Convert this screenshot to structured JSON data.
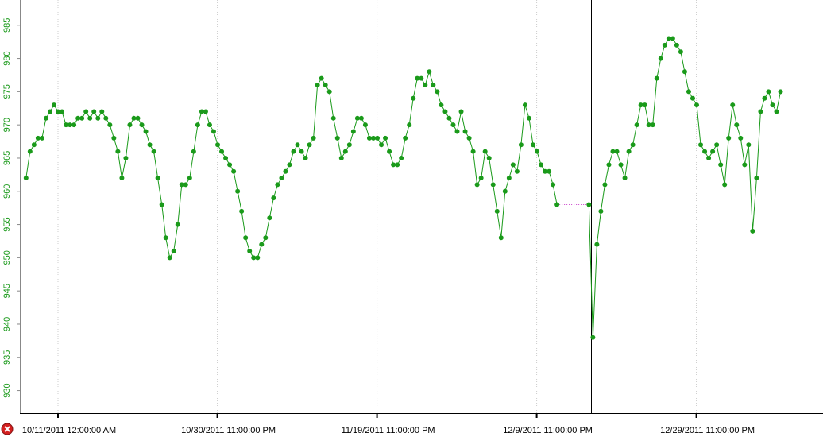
{
  "chart_data": {
    "type": "line-scatter",
    "color": "#1a9a1a",
    "gap_color": "#cc44cc",
    "xlim": [
      "2011-10-06T05:22",
      "2012-01-14T19:40"
    ],
    "ylim": [
      926.6,
      988.8
    ],
    "yticks": [
      930,
      935,
      940,
      945,
      950,
      955,
      960,
      965,
      970,
      975,
      980,
      985
    ],
    "xticks": [
      {
        "value": "2011-10-11T00:00",
        "label": "10/11/2011 12:00:00 AM"
      },
      {
        "value": "2011-10-30T23:00",
        "label": "10/30/2011 11:00:00 PM"
      },
      {
        "value": "2011-11-19T23:00",
        "label": "11/19/2011 11:00:00 PM"
      },
      {
        "value": "2011-12-09T23:00",
        "label": "12/9/2011 11:00:00 PM"
      },
      {
        "value": "2011-12-29T23:00",
        "label": "12/29/2011 11:00:00 PM"
      }
    ],
    "x": [
      "2011-10-07T00:00",
      "2011-10-07T12:00",
      "2011-10-08T00:00",
      "2011-10-08T12:00",
      "2011-10-09T00:00",
      "2011-10-09T12:00",
      "2011-10-10T00:00",
      "2011-10-10T12:00",
      "2011-10-11T00:00",
      "2011-10-11T12:00",
      "2011-10-12T00:00",
      "2011-10-12T12:00",
      "2011-10-13T00:00",
      "2011-10-13T12:00",
      "2011-10-14T00:00",
      "2011-10-14T12:00",
      "2011-10-15T00:00",
      "2011-10-15T12:00",
      "2011-10-16T00:00",
      "2011-10-16T12:00",
      "2011-10-17T00:00",
      "2011-10-17T12:00",
      "2011-10-18T00:00",
      "2011-10-18T12:00",
      "2011-10-19T00:00",
      "2011-10-19T12:00",
      "2011-10-20T00:00",
      "2011-10-20T12:00",
      "2011-10-21T00:00",
      "2011-10-21T12:00",
      "2011-10-22T00:00",
      "2011-10-22T12:00",
      "2011-10-23T00:00",
      "2011-10-23T12:00",
      "2011-10-24T00:00",
      "2011-10-24T12:00",
      "2011-10-25T00:00",
      "2011-10-25T12:00",
      "2011-10-26T00:00",
      "2011-10-26T12:00",
      "2011-10-27T00:00",
      "2011-10-27T12:00",
      "2011-10-28T00:00",
      "2011-10-28T12:00",
      "2011-10-29T00:00",
      "2011-10-29T12:00",
      "2011-10-30T00:00",
      "2011-10-30T12:00",
      "2011-10-31T00:00",
      "2011-10-31T12:00",
      "2011-11-01T00:00",
      "2011-11-01T12:00",
      "2011-11-02T00:00",
      "2011-11-02T12:00",
      "2011-11-03T00:00",
      "2011-11-03T12:00",
      "2011-11-04T00:00",
      "2011-11-04T12:00",
      "2011-11-05T00:00",
      "2011-11-05T12:00",
      "2011-11-06T00:00",
      "2011-11-06T12:00",
      "2011-11-07T00:00",
      "2011-11-07T12:00",
      "2011-11-08T00:00",
      "2011-11-08T12:00",
      "2011-11-09T00:00",
      "2011-11-09T12:00",
      "2011-11-10T00:00",
      "2011-11-10T12:00",
      "2011-11-11T00:00",
      "2011-11-11T12:00",
      "2011-11-12T00:00",
      "2011-11-12T12:00",
      "2011-11-13T00:00",
      "2011-11-13T12:00",
      "2011-11-14T00:00",
      "2011-11-14T12:00",
      "2011-11-15T00:00",
      "2011-11-15T12:00",
      "2011-11-16T00:00",
      "2011-11-16T12:00",
      "2011-11-17T00:00",
      "2011-11-17T12:00",
      "2011-11-18T00:00",
      "2011-11-18T12:00",
      "2011-11-19T00:00",
      "2011-11-19T12:00",
      "2011-11-20T00:00",
      "2011-11-20T12:00",
      "2011-11-21T00:00",
      "2011-11-21T12:00",
      "2011-11-22T00:00",
      "2011-11-22T12:00",
      "2011-11-23T00:00",
      "2011-11-23T12:00",
      "2011-11-24T00:00",
      "2011-11-24T12:00",
      "2011-11-25T00:00",
      "2011-11-25T12:00",
      "2011-11-26T00:00",
      "2011-11-26T12:00",
      "2011-11-27T00:00",
      "2011-11-27T12:00",
      "2011-11-28T00:00",
      "2011-11-28T12:00",
      "2011-11-29T00:00",
      "2011-11-29T12:00",
      "2011-11-30T00:00",
      "2011-11-30T12:00",
      "2011-12-01T00:00",
      "2011-12-01T12:00",
      "2011-12-02T00:00",
      "2011-12-02T12:00",
      "2011-12-03T00:00",
      "2011-12-03T12:00",
      "2011-12-04T00:00",
      "2011-12-04T12:00",
      "2011-12-05T00:00",
      "2011-12-05T12:00",
      "2011-12-06T00:00",
      "2011-12-06T12:00",
      "2011-12-07T00:00",
      "2011-12-07T12:00",
      "2011-12-08T00:00",
      "2011-12-08T12:00",
      "2011-12-09T00:00",
      "2011-12-09T12:00",
      "2011-12-10T00:00",
      "2011-12-10T12:00",
      "2011-12-11T00:00",
      "2011-12-11T12:00",
      "2011-12-12T00:00",
      "2011-12-12T12:00",
      "2011-12-13T00:00",
      "2011-12-13T12:00",
      "2011-12-14T00:00",
      "2011-12-14T12:00",
      "2011-12-15T00:00",
      "2011-12-15T12:00",
      "2011-12-16T00:00",
      "2011-12-16T12:00",
      "2011-12-17T00:00",
      "2011-12-17T12:00",
      "2011-12-18T00:00",
      "2011-12-18T12:00",
      "2011-12-19T00:00",
      "2011-12-19T12:00",
      "2011-12-20T00:00",
      "2011-12-20T12:00",
      "2011-12-21T00:00",
      "2011-12-21T12:00",
      "2011-12-22T00:00",
      "2011-12-22T12:00",
      "2011-12-23T00:00",
      "2011-12-23T12:00",
      "2011-12-24T00:00",
      "2011-12-24T12:00",
      "2011-12-25T00:00",
      "2011-12-25T12:00",
      "2011-12-26T00:00",
      "2011-12-26T12:00",
      "2011-12-27T00:00",
      "2011-12-27T12:00",
      "2011-12-28T00:00",
      "2011-12-28T12:00",
      "2011-12-29T00:00",
      "2011-12-29T12:00",
      "2011-12-30T00:00",
      "2011-12-30T12:00",
      "2011-12-31T00:00",
      "2011-12-31T12:00",
      "2012-01-01T00:00",
      "2012-01-01T12:00",
      "2012-01-02T00:00",
      "2012-01-02T12:00",
      "2012-01-03T00:00",
      "2012-01-03T12:00",
      "2012-01-04T00:00",
      "2012-01-04T12:00",
      "2012-01-05T00:00",
      "2012-01-05T12:00",
      "2012-01-06T00:00",
      "2012-01-06T12:00",
      "2012-01-07T00:00",
      "2012-01-07T12:00",
      "2012-01-08T00:00",
      "2012-01-08T12:00",
      "2012-01-09T00:00",
      "2012-01-09T12:00"
    ],
    "values": [
      962,
      966,
      967,
      968,
      968,
      971,
      972,
      973,
      972,
      972,
      970,
      970,
      970,
      971,
      971,
      972,
      971,
      972,
      971,
      972,
      971,
      970,
      968,
      966,
      962,
      965,
      970,
      971,
      971,
      970,
      969,
      967,
      966,
      962,
      958,
      953,
      950,
      951,
      955,
      961,
      961,
      962,
      966,
      970,
      972,
      972,
      970,
      969,
      967,
      966,
      965,
      964,
      963,
      960,
      957,
      953,
      951,
      950,
      950,
      952,
      953,
      956,
      959,
      961,
      962,
      963,
      964,
      966,
      967,
      966,
      965,
      967,
      968,
      976,
      977,
      976,
      975,
      971,
      968,
      965,
      966,
      967,
      969,
      971,
      971,
      970,
      968,
      968,
      968,
      967,
      968,
      966,
      964,
      964,
      965,
      968,
      970,
      974,
      977,
      977,
      976,
      978,
      976,
      975,
      973,
      972,
      971,
      970,
      969,
      972,
      969,
      968,
      966,
      961,
      962,
      966,
      965,
      961,
      957,
      953,
      960,
      962,
      964,
      963,
      967,
      973,
      971,
      967,
      966,
      964,
      963,
      963,
      961,
      958,
      null,
      null,
      null,
      null,
      null,
      null,
      null,
      958,
      938,
      952,
      957,
      961,
      964,
      966,
      966,
      964,
      962,
      966,
      967,
      970,
      973,
      973,
      970,
      970,
      977,
      980,
      982,
      983,
      983,
      982,
      981,
      978,
      975,
      974,
      973,
      967,
      966,
      965,
      966,
      967,
      964,
      961,
      968,
      973,
      970,
      968,
      964,
      967,
      954,
      962,
      972,
      974,
      975,
      973,
      972,
      975
    ]
  }
}
